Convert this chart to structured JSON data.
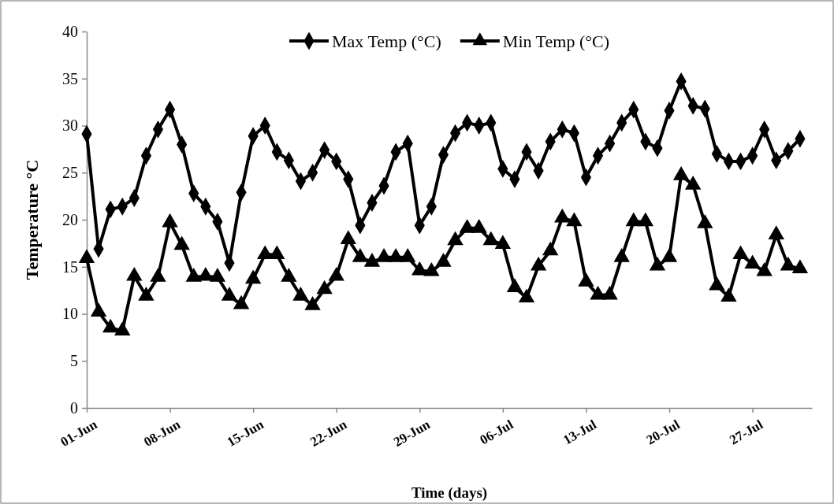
{
  "chart_data": {
    "type": "line",
    "xlabel": "Time (days)",
    "ylabel": "Temperature °C",
    "x": [
      "--06-01",
      "--06-02",
      "--06-03",
      "--06-04",
      "--06-05",
      "--06-06",
      "--06-07",
      "--06-08",
      "--06-09",
      "--06-10",
      "--06-11",
      "--06-12",
      "--06-13",
      "--06-14",
      "--06-15",
      "--06-16",
      "--06-17",
      "--06-18",
      "--06-19",
      "--06-20",
      "--06-21",
      "--06-22",
      "--06-23",
      "--06-24",
      "--06-25",
      "--06-26",
      "--06-27",
      "--06-28",
      "--06-29",
      "--06-30",
      "--07-01",
      "--07-02",
      "--07-03",
      "--07-04",
      "--07-05",
      "--07-06",
      "--07-07",
      "--07-08",
      "--07-09",
      "--07-10",
      "--07-11",
      "--07-12",
      "--07-13",
      "--07-14",
      "--07-15",
      "--07-16",
      "--07-17",
      "--07-18",
      "--07-19",
      "--07-20",
      "--07-21",
      "--07-22",
      "--07-23",
      "--07-24",
      "--07-25",
      "--07-26",
      "--07-27",
      "--07-28",
      "--07-29",
      "--07-30",
      "--07-31"
    ],
    "series": [
      {
        "name": "Max Temp (°C)",
        "color": "#000000",
        "marker": "diamond",
        "values": [
          29.1,
          16.9,
          21.1,
          21.4,
          22.3,
          26.8,
          29.6,
          31.7,
          28.0,
          22.8,
          21.4,
          19.8,
          15.4,
          22.9,
          28.9,
          30.0,
          27.2,
          26.3,
          24.1,
          25.0,
          27.4,
          26.2,
          24.3,
          19.4,
          21.8,
          23.6,
          27.2,
          28.1,
          19.4,
          21.4,
          26.9,
          29.2,
          30.3,
          30.0,
          30.3,
          25.4,
          24.3,
          27.2,
          25.2,
          28.3,
          29.6,
          29.2,
          24.5,
          26.8,
          28.1,
          30.3,
          31.7,
          28.3,
          27.6,
          31.6,
          34.7,
          32.1,
          31.8,
          27.0,
          26.2,
          26.2,
          26.8,
          29.6,
          26.3,
          27.3,
          28.6
        ]
      },
      {
        "name": "Min Temp (°C)",
        "color": "#000000",
        "marker": "triangle",
        "values": [
          15.9,
          10.2,
          8.5,
          8.2,
          14.0,
          11.9,
          13.9,
          19.7,
          17.3,
          13.9,
          14.0,
          13.9,
          11.9,
          11.0,
          13.7,
          16.3,
          16.3,
          13.9,
          11.9,
          10.9,
          12.6,
          14.0,
          17.9,
          16.0,
          15.5,
          16.0,
          16.0,
          16.0,
          14.6,
          14.5,
          15.5,
          17.8,
          19.1,
          19.1,
          17.8,
          17.4,
          12.8,
          11.7,
          15.1,
          16.7,
          20.2,
          19.8,
          13.4,
          12.0,
          12.0,
          16.0,
          19.8,
          19.8,
          15.1,
          16.0,
          24.7,
          23.7,
          19.6,
          13.0,
          11.8,
          16.3,
          15.3,
          14.5,
          18.4,
          15.1,
          14.8
        ]
      }
    ],
    "xlim": [
      "--06-01",
      "--08-01"
    ],
    "xticks": [
      {
        "value": "--06-01",
        "label": "01-Jun"
      },
      {
        "value": "--06-08",
        "label": "08-Jun"
      },
      {
        "value": "--06-15",
        "label": "15-Jun"
      },
      {
        "value": "--06-22",
        "label": "22-Jun"
      },
      {
        "value": "--06-29",
        "label": "29-Jun"
      },
      {
        "value": "--07-06",
        "label": "06-Jul"
      },
      {
        "value": "--07-13",
        "label": "13-Jul"
      },
      {
        "value": "--07-20",
        "label": "20-Jul"
      },
      {
        "value": "--07-27",
        "label": "27-Jul"
      }
    ],
    "ylim": [
      0,
      40
    ],
    "yticks": [
      0,
      5,
      10,
      15,
      20,
      25,
      30,
      35,
      40
    ],
    "grid": false,
    "legend": "top",
    "line_style": "solid"
  }
}
